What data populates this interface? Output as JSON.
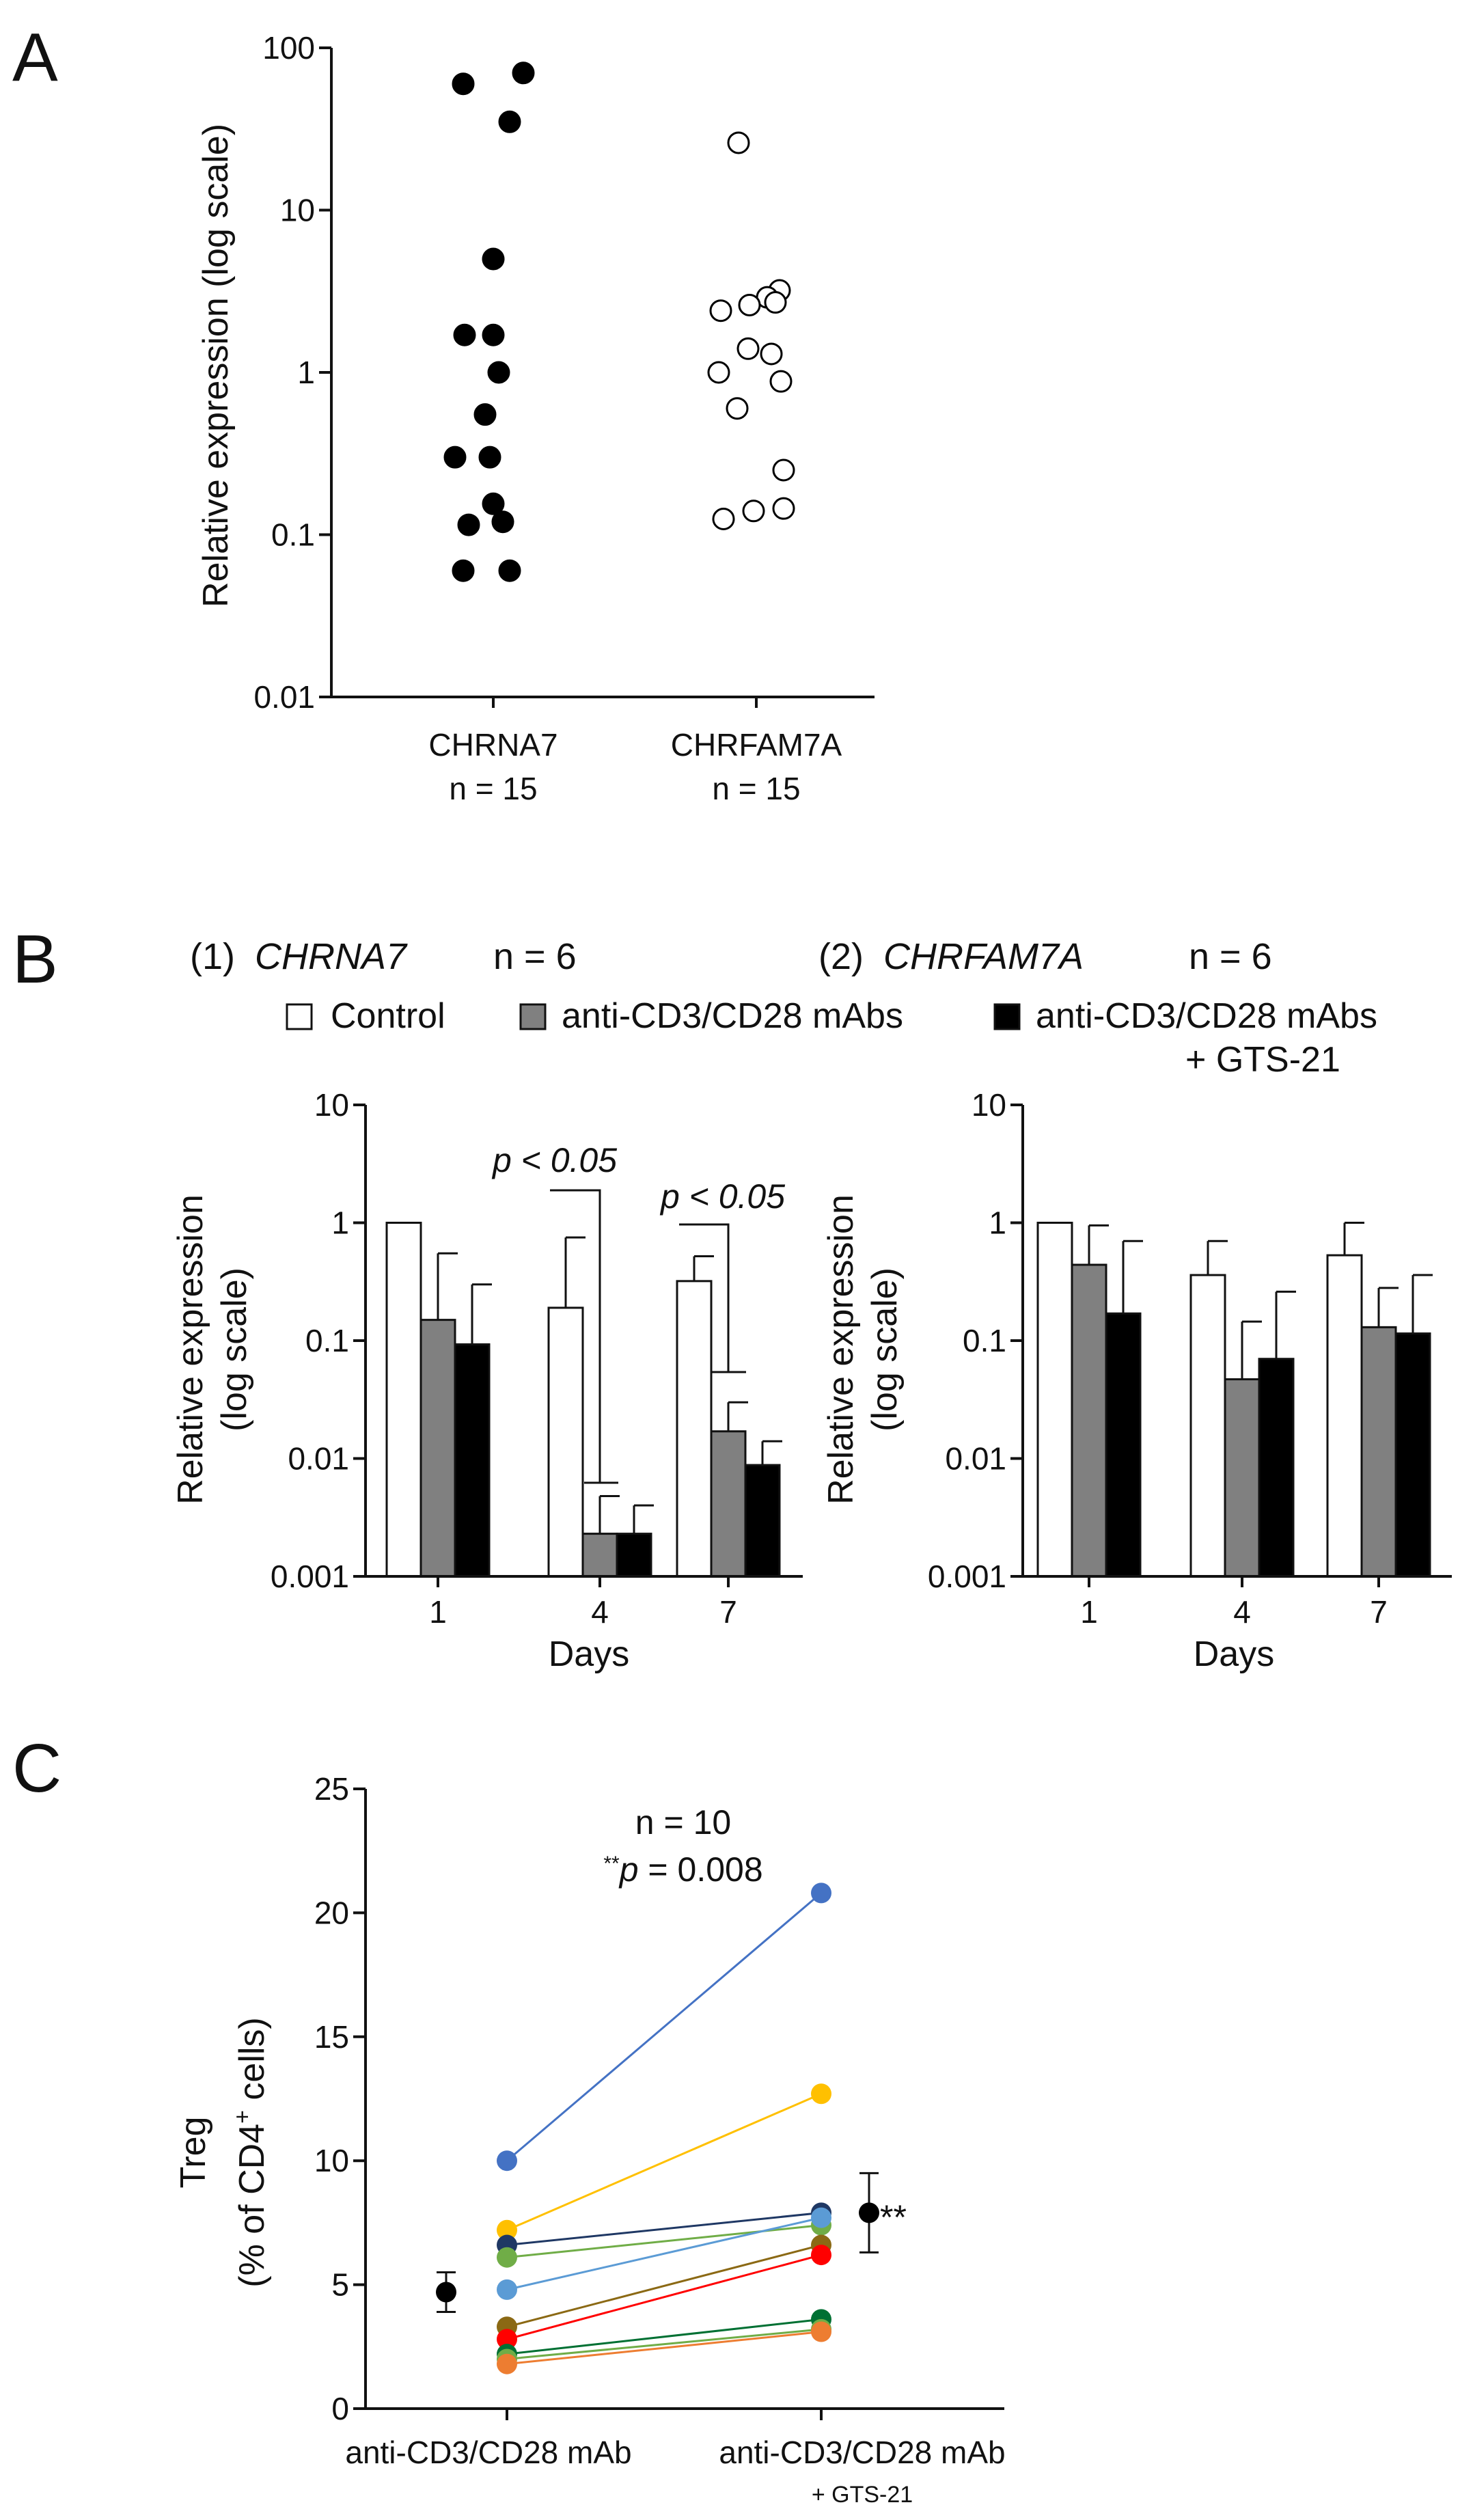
{
  "panels": {
    "A": {
      "letter": "A"
    },
    "B": {
      "letter": "B"
    },
    "C": {
      "letter": "C"
    }
  },
  "chart_data": [
    {
      "id": "A",
      "type": "scatter",
      "title": "",
      "ylabel": "Relative expression (log scale)",
      "xlabel": "",
      "yscale": "log",
      "ylim": [
        0.01,
        100
      ],
      "yticks": [
        "100",
        "10",
        "1",
        "0.1",
        "0.01"
      ],
      "categories": [
        "CHRNA7",
        "CHRFAM7A"
      ],
      "n_labels": [
        "n = 15",
        "n = 15"
      ],
      "series": [
        {
          "name": "CHRNA7",
          "fill": "#000000",
          "values": [
            60,
            70,
            35,
            5,
            1.7,
            1.7,
            1.0,
            0.55,
            0.3,
            0.3,
            0.155,
            0.115,
            0.12,
            0.06,
            0.06
          ]
        },
        {
          "name": "CHRFAM7A",
          "fill": "#ffffff",
          "values": [
            26,
            3.2,
            2.9,
            2.6,
            2.4,
            2.7,
            1.4,
            1.3,
            1.0,
            0.88,
            0.6,
            0.25,
            0.145,
            0.14,
            0.125
          ]
        }
      ]
    },
    {
      "id": "B1",
      "type": "bar",
      "subtitle_num": "(1)",
      "subtitle_gene": "CHRNA7",
      "subtitle_n": "n = 6",
      "xlabel": "Days",
      "ylabel_line1": "Relative expression",
      "ylabel_line2": "(log scale)",
      "yscale": "log",
      "ylim": [
        0.001,
        10
      ],
      "yticks": [
        "10",
        "1",
        "0.1",
        "0.01",
        "0.001"
      ],
      "categories": [
        "1",
        "4",
        "7"
      ],
      "series": [
        {
          "name": "Control",
          "fill": "#ffffff",
          "values": [
            1.0,
            0.19,
            0.32
          ],
          "err_upper": [
            1.0,
            0.75,
            0.52
          ]
        },
        {
          "name": "anti-CD3/CD28 mAbs",
          "fill": "#808080",
          "values": [
            0.15,
            0.0023,
            0.017
          ],
          "err_upper": [
            0.55,
            0.0048,
            0.03
          ]
        },
        {
          "name": "anti-CD3/CD28 mAbs + GTS-21",
          "fill": "#000000",
          "values": [
            0.093,
            0.0023,
            0.0088
          ],
          "err_upper": [
            0.3,
            0.004,
            0.014
          ]
        }
      ],
      "annotations": [
        {
          "text": "p < 0.05",
          "day": "4"
        },
        {
          "text": "p < 0.05",
          "day": "7"
        }
      ]
    },
    {
      "id": "B2",
      "type": "bar",
      "subtitle_num": "(2)",
      "subtitle_gene": "CHRFAM7A",
      "subtitle_n": "n = 6",
      "xlabel": "Days",
      "ylabel_line1": "Relative expression",
      "ylabel_line2": "(log scale)",
      "yscale": "log",
      "ylim": [
        0.001,
        10
      ],
      "yticks": [
        "10",
        "1",
        "0.1",
        "0.01",
        "0.001"
      ],
      "categories": [
        "1",
        "4",
        "7"
      ],
      "series": [
        {
          "name": "Control",
          "fill": "#ffffff",
          "values": [
            1.0,
            0.36,
            0.53
          ],
          "err_upper": [
            1.0,
            0.7,
            1.0
          ]
        },
        {
          "name": "anti-CD3/CD28 mAbs",
          "fill": "#808080",
          "values": [
            0.44,
            0.047,
            0.13
          ],
          "err_upper": [
            0.95,
            0.145,
            0.28
          ]
        },
        {
          "name": "anti-CD3/CD28 mAbs + GTS-21",
          "fill": "#000000",
          "values": [
            0.17,
            0.07,
            0.115
          ],
          "err_upper": [
            0.7,
            0.26,
            0.36
          ]
        }
      ]
    },
    {
      "id": "C",
      "type": "line",
      "ylabel_line1": "Treg",
      "ylabel_line2": "(% of CD4",
      "ylabel_sup": "+",
      "ylabel_line2_end": " cells)",
      "ylim": [
        0,
        25
      ],
      "yticks": [
        "25",
        "20",
        "15",
        "10",
        "5",
        "0"
      ],
      "categories": [
        "anti-CD3/CD28 mAb",
        "anti-CD3/CD28 mAb"
      ],
      "category_sub": [
        "",
        "+ GTS-21"
      ],
      "n_text": "n = 10",
      "p_stars": "**",
      "p_text": "p",
      "p_value": " = 0.008",
      "sig_label": "**",
      "series": [
        {
          "color": "#4472c4",
          "values": [
            10.0,
            20.8
          ]
        },
        {
          "color": "#ffc000",
          "values": [
            7.2,
            12.7
          ]
        },
        {
          "color": "#1f3864",
          "values": [
            6.6,
            7.9
          ]
        },
        {
          "color": "#70ad47",
          "values": [
            6.1,
            7.4
          ]
        },
        {
          "color": "#5b9bd5",
          "values": [
            4.8,
            7.7
          ]
        },
        {
          "color": "#8b6914",
          "values": [
            3.3,
            6.6
          ]
        },
        {
          "color": "#ff0000",
          "values": [
            2.8,
            6.2
          ]
        },
        {
          "color": "#007033",
          "values": [
            2.2,
            3.6
          ]
        },
        {
          "color": "#70ad47",
          "values": [
            2.0,
            3.2
          ]
        },
        {
          "color": "#ed7d31",
          "values": [
            1.8,
            3.1
          ]
        }
      ],
      "mean": [
        {
          "mean": 4.7,
          "low": 3.9,
          "high": 5.5
        },
        {
          "mean": 7.9,
          "low": 6.3,
          "high": 9.5
        }
      ]
    }
  ]
}
